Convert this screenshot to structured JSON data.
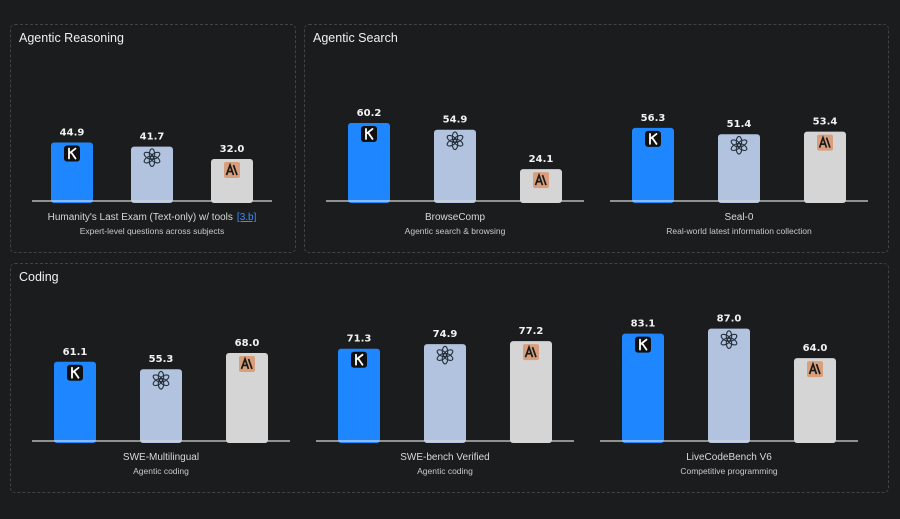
{
  "sections": [
    {
      "title": "Agentic Reasoning"
    },
    {
      "title": "Agentic Search"
    },
    {
      "title": "Coding"
    }
  ],
  "colors": {
    "kimi": "#1e86ff",
    "openai": "#b1c3de",
    "anthropic": "#d5d5d5",
    "anthropic_logo_bg": "#d99f7d",
    "axis": "#d8d8d8"
  },
  "icons": [
    "kimi-logo-icon",
    "openai-logo-icon",
    "anthropic-logo-icon"
  ],
  "chart_data": [
    {
      "type": "bar",
      "section": 0,
      "title": "Humanity's Last Exam (Text-only) w/ tools",
      "title_ref": "[3.b]",
      "subtitle": "Expert-level questions across subjects",
      "values": [
        44.9,
        41.7,
        32.0
      ],
      "labels": [
        "44.9",
        "41.7",
        "32.0"
      ],
      "ylim": [
        0,
        100
      ]
    },
    {
      "type": "bar",
      "section": 1,
      "title": "BrowseComp",
      "subtitle": "Agentic search & browsing",
      "values": [
        60.2,
        54.9,
        24.1
      ],
      "labels": [
        "60.2",
        "54.9",
        "24.1"
      ],
      "ylim": [
        0,
        100
      ]
    },
    {
      "type": "bar",
      "section": 1,
      "title": "Seal-0",
      "subtitle": "Real-world latest information collection",
      "values": [
        56.3,
        51.4,
        53.4
      ],
      "labels": [
        "56.3",
        "51.4",
        "53.4"
      ],
      "ylim": [
        0,
        100
      ]
    },
    {
      "type": "bar",
      "section": 2,
      "title": "SWE-Multilingual",
      "subtitle": "Agentic coding",
      "values": [
        61.1,
        55.3,
        68.0
      ],
      "labels": [
        "61.1",
        "55.3",
        "68.0"
      ],
      "ylim": [
        0,
        100
      ]
    },
    {
      "type": "bar",
      "section": 2,
      "title": "SWE-bench Verified",
      "subtitle": "Agentic coding",
      "values": [
        71.3,
        74.9,
        77.2
      ],
      "labels": [
        "71.3",
        "74.9",
        "77.2"
      ],
      "ylim": [
        0,
        100
      ]
    },
    {
      "type": "bar",
      "section": 2,
      "title": "LiveCodeBench V6",
      "subtitle": "Competitive programming",
      "values": [
        83.1,
        87.0,
        64.0
      ],
      "labels": [
        "83.1",
        "87.0",
        "64.0"
      ],
      "ylim": [
        0,
        100
      ]
    }
  ]
}
